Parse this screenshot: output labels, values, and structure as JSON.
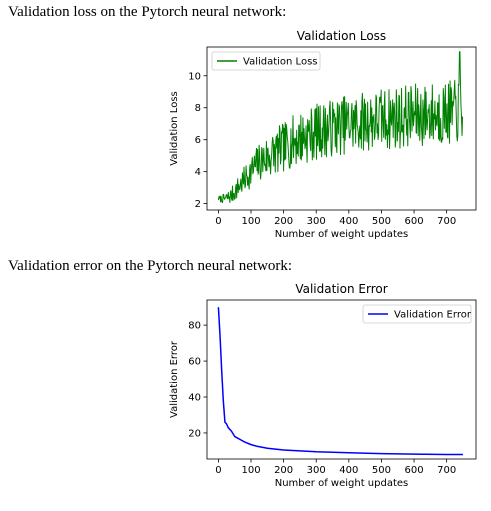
{
  "captions": {
    "loss": "Validation loss on the Pytorch neural network:",
    "error": "Validation error on the Pytorch neural network:"
  },
  "chart_data": [
    {
      "type": "line",
      "title": "Validation Loss",
      "xlabel": "Number of weight updates",
      "ylabel": "Validation Loss",
      "xlim": [
        -35,
        790
      ],
      "ylim": [
        1.6,
        11.8
      ],
      "xticks": [
        0,
        100,
        200,
        300,
        400,
        500,
        600,
        700
      ],
      "yticks": [
        2,
        4,
        6,
        8,
        10
      ],
      "grid": false,
      "legend": "top-left",
      "series": [
        {
          "name": "Validation Loss",
          "color": "#008000",
          "x": [
            0,
            20,
            40,
            60,
            80,
            100,
            120,
            140,
            160,
            180,
            200,
            220,
            240,
            260,
            280,
            300,
            320,
            340,
            360,
            380,
            400,
            420,
            440,
            460,
            480,
            500,
            520,
            540,
            560,
            580,
            600,
            620,
            640,
            660,
            680,
            700,
            720,
            740,
            750
          ],
          "y": [
            2.3,
            2.3,
            2.5,
            3.0,
            3.5,
            4.0,
            4.5,
            4.8,
            5.0,
            5.3,
            5.5,
            5.8,
            6.0,
            6.2,
            6.3,
            6.5,
            6.6,
            6.7,
            6.8,
            6.9,
            7.0,
            7.0,
            7.1,
            7.2,
            7.2,
            7.3,
            7.3,
            7.4,
            7.4,
            7.5,
            7.5,
            7.5,
            7.6,
            7.6,
            7.6,
            7.7,
            7.7,
            7.8,
            7.8
          ],
          "spread_x": [
            0,
            50,
            150,
            250,
            350,
            450,
            550,
            650,
            750
          ],
          "spread": [
            0.15,
            0.6,
            1.4,
            1.7,
            1.8,
            1.9,
            2.0,
            2.0,
            2.0
          ],
          "step": 1.6,
          "peak_at": 740
        }
      ]
    },
    {
      "type": "line",
      "title": "Validation Error",
      "xlabel": "Number of weight updates",
      "ylabel": "Validation Error",
      "xlim": [
        -35,
        790
      ],
      "ylim": [
        5.5,
        94
      ],
      "xticks": [
        0,
        100,
        200,
        300,
        400,
        500,
        600,
        700
      ],
      "yticks": [
        20,
        40,
        60,
        80
      ],
      "grid": false,
      "legend": "top-right",
      "series": [
        {
          "name": "Validation Error",
          "color": "#0000ff",
          "x": [
            0,
            5,
            10,
            15,
            20,
            25,
            30,
            40,
            50,
            60,
            70,
            80,
            100,
            120,
            150,
            200,
            250,
            300,
            400,
            500,
            600,
            700,
            750
          ],
          "y": [
            90,
            74,
            55,
            38,
            26,
            25,
            23,
            21,
            18,
            17,
            16,
            15,
            13.5,
            12.5,
            11.5,
            10.5,
            10,
            9.5,
            9,
            8.5,
            8.2,
            8.0,
            8.0
          ]
        }
      ]
    }
  ]
}
